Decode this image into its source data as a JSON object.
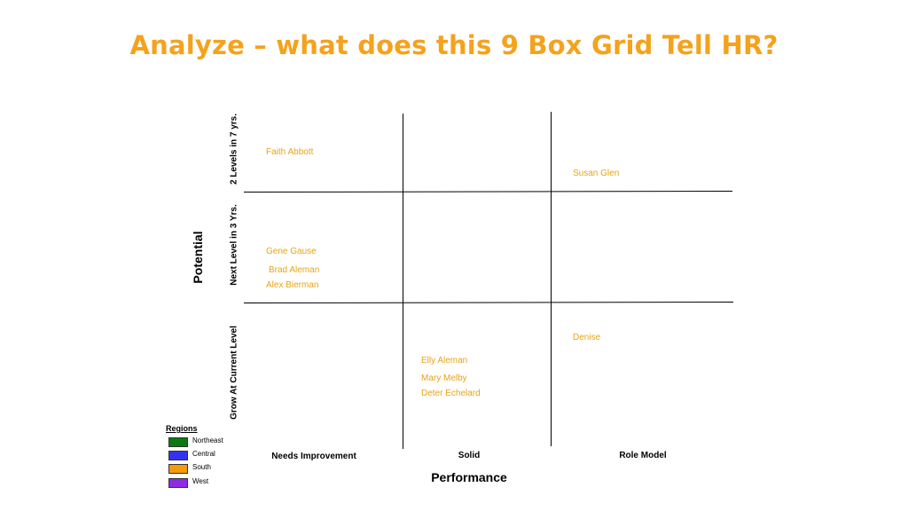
{
  "title": "Analyze – what does this 9 Box Grid Tell HR?",
  "axes": {
    "y_title": "Potential",
    "x_title": "Performance",
    "rows": [
      "2 Levels in 7 yrs.",
      "Next Level in 3 Yrs.",
      "Grow At Current Level"
    ],
    "columns": [
      "Needs Improvement",
      "Solid",
      "Role Model"
    ]
  },
  "employees": [
    {
      "name": "Faith Abbott",
      "row": 0,
      "col": 0
    },
    {
      "name": "Susan Glen",
      "row": 0,
      "col": 2
    },
    {
      "name": "Gene Gause",
      "row": 1,
      "col": 0
    },
    {
      "name": "Brad Aleman",
      "row": 1,
      "col": 0
    },
    {
      "name": "Alex Bierman",
      "row": 1,
      "col": 0
    },
    {
      "name": "Denise",
      "row": 2,
      "col": 2
    },
    {
      "name": "Elly Aleman",
      "row": 2,
      "col": 1
    },
    {
      "name": "Mary Melby",
      "row": 2,
      "col": 1
    },
    {
      "name": "Deter Echelard",
      "row": 2,
      "col": 1
    }
  ],
  "legend": {
    "title": "Regions",
    "items": [
      {
        "label": "Northeast",
        "color": "#0a7a12"
      },
      {
        "label": "Central",
        "color": "#3333ee"
      },
      {
        "label": "South",
        "color": "#f59a0c"
      },
      {
        "label": "West",
        "color": "#8e2be6"
      }
    ]
  },
  "name_color": "#e8a317",
  "title_color": "#f5a21c"
}
